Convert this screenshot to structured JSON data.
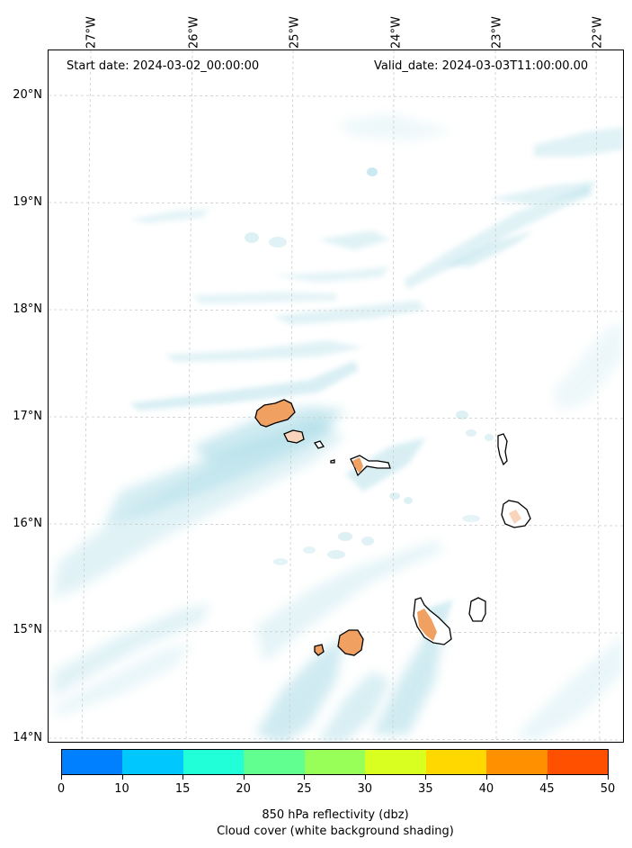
{
  "header": {
    "start_date": "Start date: 2024-03-02_00:00:00",
    "valid_date": "Valid_date: 2024-03-03T11:00:00.00"
  },
  "longitude_labels": [
    "27°W",
    "26°W",
    "25°W",
    "24°W",
    "23°W",
    "22°W"
  ],
  "latitude_labels": [
    "20°N",
    "19°N",
    "18°N",
    "17°N",
    "16°N",
    "15°N",
    "14°N"
  ],
  "colorbar": {
    "ticks": [
      "0",
      "10",
      "15",
      "20",
      "25",
      "30",
      "35",
      "40",
      "45",
      "50"
    ],
    "colors": [
      "#0080ff",
      "#00c8ff",
      "#20ffd8",
      "#60ff90",
      "#98ff58",
      "#d8ff20",
      "#ffd800",
      "#ff9000",
      "#ff5000"
    ]
  },
  "caption": {
    "line1": "850 hPa reflectivity (dbz)",
    "line2": "Cloud cover (white background shading)"
  },
  "colors": {
    "cloud": "#a9dbe6",
    "reflectivity_low": "#f0a060",
    "island_outline": "#000000"
  }
}
